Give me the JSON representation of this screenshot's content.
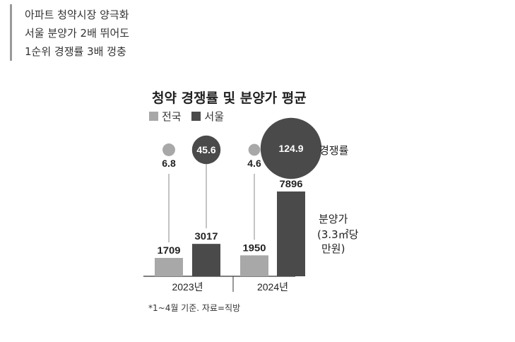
{
  "headline": {
    "lines": [
      "아파트 청약시장 양극화",
      "서울 분양가 2배 뛰어도",
      "1순위 경쟁률 3배 껑충"
    ]
  },
  "chart_data": {
    "type": "bar",
    "title": "청약 경쟁률 및 분양가 평균",
    "categories": [
      "2023년",
      "2024년"
    ],
    "series": [
      {
        "name": "전국",
        "color": "#a8a8a8",
        "price": [
          1709,
          1950
        ],
        "competition": [
          6.8,
          4.6
        ]
      },
      {
        "name": "서울",
        "color": "#4a4a4a",
        "price": [
          3017,
          7896
        ],
        "competition": [
          45.6,
          124.9
        ]
      }
    ],
    "competition_label": "경쟁률",
    "price_label_lines": [
      "분양가",
      "(3.3㎡당",
      "만원)"
    ],
    "footnote": "*1~4월 기준. 자료=직방"
  }
}
